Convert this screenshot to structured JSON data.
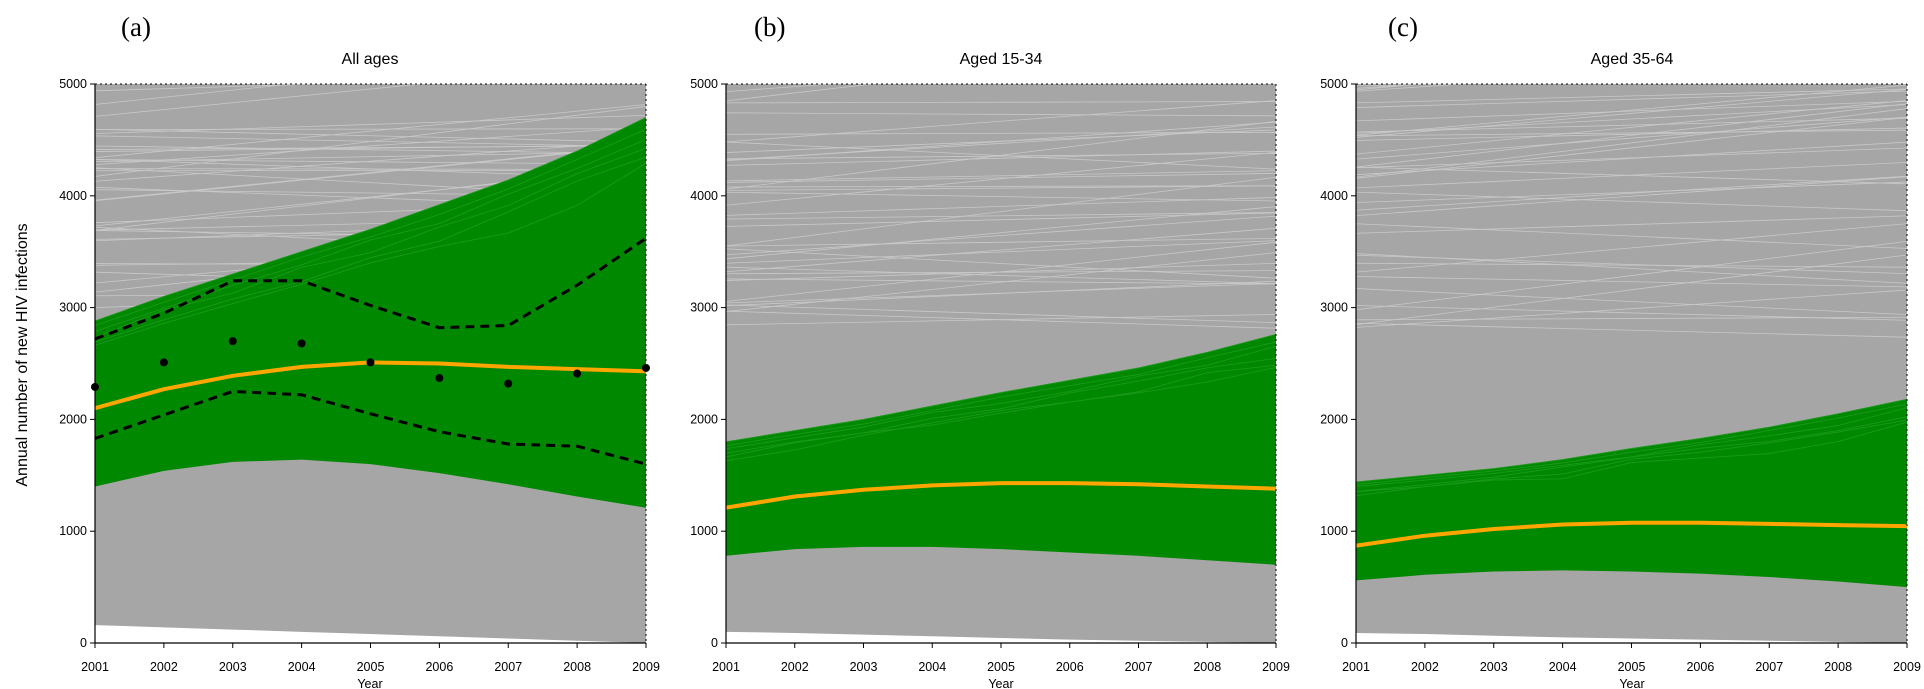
{
  "figure": {
    "ylabel": "Annual number of new HIV infections"
  },
  "chart_data": [
    {
      "type": "line",
      "panel_label": "(a)",
      "title": "All ages",
      "xlabel": "Year",
      "ylabel": "Annual number of new HIV infections",
      "x": [
        2001,
        2002,
        2003,
        2004,
        2005,
        2006,
        2007,
        2008,
        2009
      ],
      "xlim": [
        2001,
        2009
      ],
      "ylim": [
        0,
        5000
      ],
      "yticks": [
        0,
        1000,
        2000,
        3000,
        4000,
        5000
      ],
      "colors": {
        "rejected": "#a6a6a6",
        "accepted": "#008800",
        "median": "#ffa500",
        "bounds": "#000000",
        "observed": "#000000"
      },
      "bands": {
        "rejected": {
          "lower": [
            160,
            140,
            120,
            100,
            80,
            60,
            40,
            20,
            0
          ],
          "upper": [
            5000,
            5000,
            5000,
            5000,
            5000,
            5000,
            5000,
            5000,
            5000
          ]
        },
        "accepted": {
          "lower": [
            1400,
            1540,
            1620,
            1640,
            1600,
            1520,
            1420,
            1310,
            1210
          ],
          "upper": [
            2880,
            3100,
            3300,
            3500,
            3700,
            3920,
            4140,
            4400,
            4700
          ]
        }
      },
      "series": [
        {
          "role": "median",
          "values": [
            2100,
            2270,
            2390,
            2470,
            2510,
            2500,
            2470,
            2450,
            2430
          ]
        },
        {
          "role": "upper_bound",
          "values": [
            2720,
            2950,
            3240,
            3240,
            3020,
            2820,
            2840,
            3200,
            3620
          ]
        },
        {
          "role": "lower_bound",
          "values": [
            1830,
            2040,
            2250,
            2220,
            2050,
            1890,
            1780,
            1760,
            1600
          ]
        },
        {
          "role": "observed",
          "values": [
            2290,
            2510,
            2700,
            2680,
            2510,
            2370,
            2320,
            2410,
            2460
          ]
        }
      ]
    },
    {
      "type": "line",
      "panel_label": "(b)",
      "title": "Aged 15-34",
      "xlabel": "Year",
      "x": [
        2001,
        2002,
        2003,
        2004,
        2005,
        2006,
        2007,
        2008,
        2009
      ],
      "xlim": [
        2001,
        2009
      ],
      "ylim": [
        0,
        5000
      ],
      "yticks": [
        0,
        1000,
        2000,
        3000,
        4000,
        5000
      ],
      "colors": {
        "rejected": "#a6a6a6",
        "accepted": "#008800",
        "median": "#ffa500"
      },
      "bands": {
        "rejected": {
          "lower": [
            100,
            90,
            75,
            60,
            45,
            30,
            20,
            10,
            0
          ],
          "upper": [
            5000,
            5000,
            5000,
            5000,
            5000,
            5000,
            5000,
            5000,
            5000
          ]
        },
        "accepted": {
          "lower": [
            780,
            840,
            860,
            860,
            840,
            810,
            780,
            740,
            700
          ],
          "upper": [
            1800,
            1900,
            2000,
            2120,
            2240,
            2350,
            2460,
            2600,
            2760
          ]
        }
      },
      "series": [
        {
          "role": "median",
          "values": [
            1210,
            1310,
            1370,
            1410,
            1430,
            1430,
            1420,
            1400,
            1380
          ]
        }
      ]
    },
    {
      "type": "line",
      "panel_label": "(c)",
      "title": "Aged 35-64",
      "xlabel": "Year",
      "x": [
        2001,
        2002,
        2003,
        2004,
        2005,
        2006,
        2007,
        2008,
        2009
      ],
      "xlim": [
        2001,
        2009
      ],
      "ylim": [
        0,
        5000
      ],
      "yticks": [
        0,
        1000,
        2000,
        3000,
        4000,
        5000
      ],
      "colors": {
        "rejected": "#a6a6a6",
        "accepted": "#008800",
        "median": "#ffa500"
      },
      "bands": {
        "rejected": {
          "lower": [
            90,
            80,
            65,
            50,
            40,
            30,
            20,
            10,
            0
          ],
          "upper": [
            5000,
            5000,
            5000,
            5000,
            5000,
            5000,
            5000,
            5000,
            5000
          ]
        },
        "accepted": {
          "lower": [
            560,
            610,
            640,
            650,
            640,
            620,
            590,
            550,
            500
          ],
          "upper": [
            1440,
            1500,
            1560,
            1640,
            1740,
            1830,
            1930,
            2050,
            2180
          ]
        }
      },
      "series": [
        {
          "role": "median",
          "values": [
            870,
            960,
            1020,
            1060,
            1075,
            1075,
            1065,
            1055,
            1045
          ]
        }
      ]
    }
  ]
}
